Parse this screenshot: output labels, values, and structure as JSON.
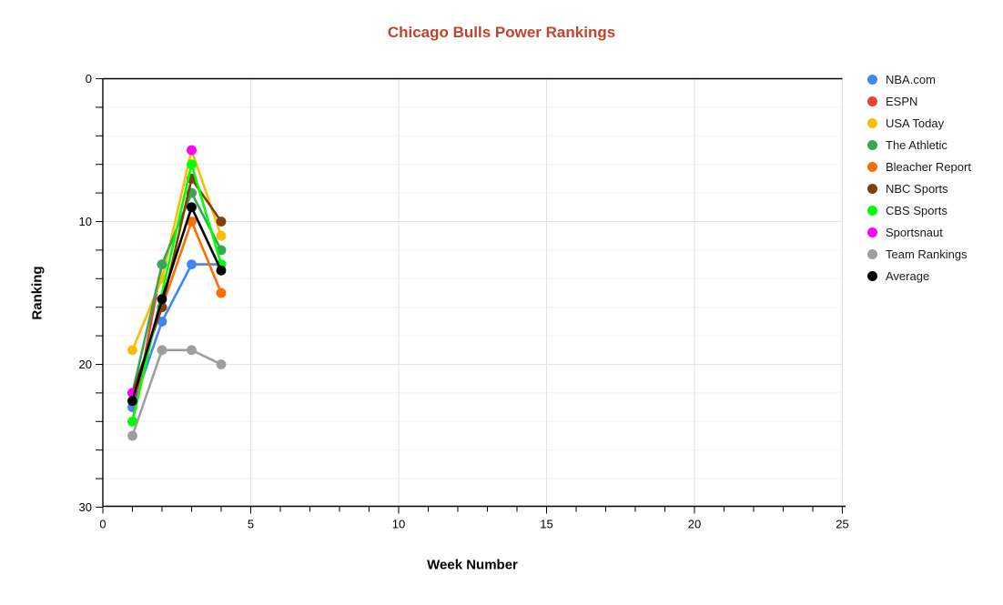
{
  "title": {
    "text": "Chicago Bulls Power Rankings",
    "color": "#c0432b"
  },
  "axes": {
    "x": {
      "label": "Week Number",
      "min": 0,
      "max": 25,
      "major_ticks": [
        0,
        5,
        10,
        15,
        20,
        25
      ],
      "minor_step": 1
    },
    "y": {
      "label": "Ranking",
      "min": 0,
      "max": 30,
      "reversed": true,
      "major_ticks": [
        0,
        10,
        20,
        30
      ],
      "minor_step": 2
    }
  },
  "legend": [
    {
      "label": "NBA.com",
      "color": "#4285f4"
    },
    {
      "label": "ESPN",
      "color": "#ea4335"
    },
    {
      "label": "USA Today",
      "color": "#fbbc04"
    },
    {
      "label": "The Athletic",
      "color": "#34a853"
    },
    {
      "label": "Bleacher Report",
      "color": "#ff6d01"
    },
    {
      "label": "NBC Sports",
      "color": "#7f3f10"
    },
    {
      "label": "CBS Sports",
      "color": "#00ff00"
    },
    {
      "label": "Sportsnaut",
      "color": "#ff00ff"
    },
    {
      "label": "Team Rankings",
      "color": "#9e9e9e"
    },
    {
      "label": "Average",
      "color": "#000000"
    }
  ],
  "chart_data": {
    "type": "line",
    "title": "Chicago Bulls Power Rankings",
    "xlabel": "Week Number",
    "ylabel": "Ranking",
    "xlim": [
      0,
      25
    ],
    "ylim": [
      0,
      30
    ],
    "y_axis_reversed": true,
    "grid": true,
    "legend_position": "right",
    "x": [
      1,
      2,
      3,
      4
    ],
    "series": [
      {
        "name": "NBA.com",
        "color": "#4285f4",
        "values": [
          23,
          17,
          13,
          13
        ],
        "connect_gaps": false
      },
      {
        "name": "ESPN",
        "color": "#ea4335",
        "values": [
          24,
          13,
          8,
          null
        ],
        "connect_gaps": false
      },
      {
        "name": "USA Today",
        "color": "#fbbc04",
        "values": [
          19,
          14,
          5,
          11
        ],
        "connect_gaps": false
      },
      {
        "name": "The Athletic",
        "color": "#34a853",
        "values": [
          22,
          13,
          8,
          12
        ],
        "connect_gaps": false
      },
      {
        "name": "Bleacher Report",
        "color": "#ff6d01",
        "values": [
          22,
          16,
          10,
          15
        ],
        "connect_gaps": false
      },
      {
        "name": "NBC Sports",
        "color": "#7f3f10",
        "values": [
          22,
          16,
          7,
          10
        ],
        "connect_gaps": false
      },
      {
        "name": "CBS Sports",
        "color": "#00ff00",
        "values": [
          24,
          null,
          6,
          13
        ],
        "connect_gaps": true
      },
      {
        "name": "Sportsnaut",
        "color": "#ff00ff",
        "values": [
          22,
          null,
          5,
          null
        ],
        "connect_gaps": false
      },
      {
        "name": "Team Rankings",
        "color": "#9e9e9e",
        "values": [
          25,
          19,
          19,
          20
        ],
        "connect_gaps": false
      },
      {
        "name": "Average",
        "color": "#000000",
        "values": [
          22.56,
          15.43,
          9,
          13.43
        ],
        "connect_gaps": false
      }
    ]
  }
}
